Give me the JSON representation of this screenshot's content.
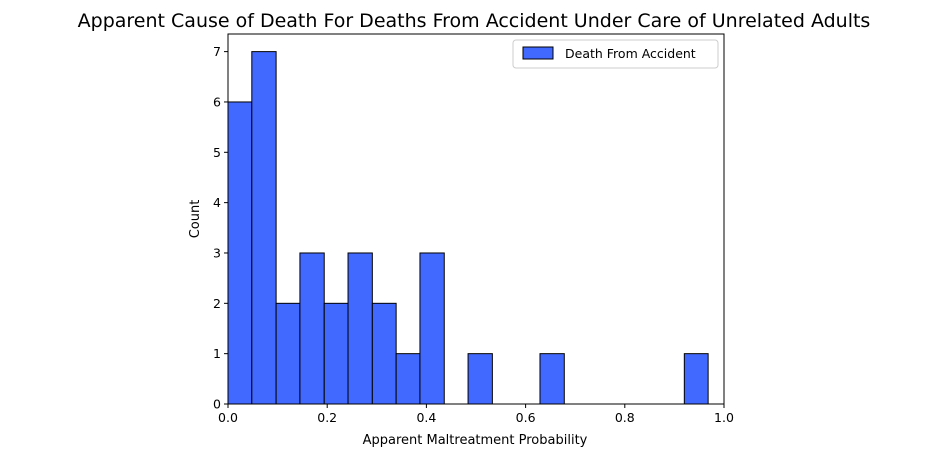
{
  "chart_data": {
    "type": "bar",
    "title": "Apparent Cause of Death For Deaths From Accident Under Care of Unrelated Adults",
    "xlabel": "Apparent Maltreatment Probability",
    "ylabel": "Count",
    "xlim": [
      0.0,
      1.0
    ],
    "ylim": [
      0,
      7.35
    ],
    "xticks": [
      0.0,
      0.2,
      0.4,
      0.6,
      0.8,
      1.0
    ],
    "xtick_labels": [
      "0.0",
      "0.2",
      "0.4",
      "0.6",
      "0.8",
      "1.0"
    ],
    "yticks": [
      0,
      1,
      2,
      3,
      4,
      5,
      6,
      7
    ],
    "ytick_labels": [
      "0",
      "1",
      "2",
      "3",
      "4",
      "5",
      "6",
      "7"
    ],
    "grid": false,
    "legend_position": "top-right",
    "bar_color": "#4269ff",
    "series": [
      {
        "name": "Death From Accident",
        "bins": [
          {
            "x0": 0.0,
            "x1": 0.048,
            "count": 6
          },
          {
            "x0": 0.048,
            "x1": 0.097,
            "count": 7
          },
          {
            "x0": 0.097,
            "x1": 0.145,
            "count": 2
          },
          {
            "x0": 0.145,
            "x1": 0.194,
            "count": 3
          },
          {
            "x0": 0.194,
            "x1": 0.242,
            "count": 2
          },
          {
            "x0": 0.242,
            "x1": 0.291,
            "count": 3
          },
          {
            "x0": 0.291,
            "x1": 0.339,
            "count": 2
          },
          {
            "x0": 0.339,
            "x1": 0.387,
            "count": 1
          },
          {
            "x0": 0.387,
            "x1": 0.436,
            "count": 3
          },
          {
            "x0": 0.436,
            "x1": 0.484,
            "count": 0
          },
          {
            "x0": 0.484,
            "x1": 0.533,
            "count": 1
          },
          {
            "x0": 0.533,
            "x1": 0.581,
            "count": 0
          },
          {
            "x0": 0.581,
            "x1": 0.629,
            "count": 0
          },
          {
            "x0": 0.629,
            "x1": 0.678,
            "count": 1
          },
          {
            "x0": 0.678,
            "x1": 0.726,
            "count": 0
          },
          {
            "x0": 0.726,
            "x1": 0.775,
            "count": 0
          },
          {
            "x0": 0.775,
            "x1": 0.823,
            "count": 0
          },
          {
            "x0": 0.823,
            "x1": 0.871,
            "count": 0
          },
          {
            "x0": 0.871,
            "x1": 0.92,
            "count": 0
          },
          {
            "x0": 0.92,
            "x1": 0.968,
            "count": 1
          }
        ]
      }
    ]
  }
}
